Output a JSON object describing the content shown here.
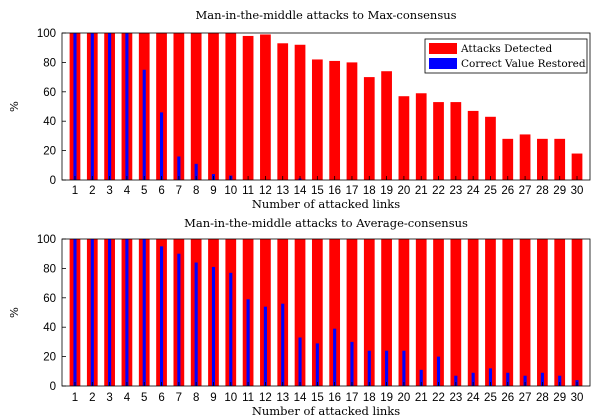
{
  "chart_data": [
    {
      "type": "bar",
      "title": "Man-in-the-middle attacks to Max-consensus",
      "xlabel": "Number of attacked links",
      "ylabel": "%",
      "ylim": [
        0,
        100
      ],
      "yticks": [
        0,
        20,
        40,
        60,
        80,
        100
      ],
      "categories": [
        "1",
        "2",
        "3",
        "4",
        "5",
        "6",
        "7",
        "8",
        "9",
        "10",
        "11",
        "12",
        "13",
        "14",
        "15",
        "16",
        "17",
        "18",
        "19",
        "20",
        "21",
        "22",
        "23",
        "24",
        "25",
        "26",
        "27",
        "28",
        "29",
        "30"
      ],
      "legend": "top-right",
      "series": [
        {
          "name": "Attacks Detected",
          "color": "#ff0000",
          "values": [
            100,
            100,
            100,
            100,
            100,
            100,
            100,
            100,
            100,
            100,
            98,
            99,
            93,
            92,
            82,
            81,
            80,
            70,
            74,
            57,
            59,
            53,
            53,
            47,
            43,
            28,
            31,
            28,
            28,
            18
          ]
        },
        {
          "name": "Correct Value Restored",
          "color": "#0000ff",
          "values": [
            100,
            100,
            100,
            100,
            75,
            46,
            16,
            11,
            4,
            3,
            0,
            0,
            0,
            1,
            0,
            0,
            0,
            0,
            0,
            0,
            0,
            0,
            0,
            0,
            0,
            0,
            0,
            0,
            0,
            0
          ]
        }
      ]
    },
    {
      "type": "bar",
      "title": "Man-in-the-middle attacks to Average-consensus",
      "xlabel": "Number of attacked links",
      "ylabel": "%",
      "ylim": [
        0,
        100
      ],
      "yticks": [
        0,
        20,
        40,
        60,
        80,
        100
      ],
      "categories": [
        "1",
        "2",
        "3",
        "4",
        "5",
        "6",
        "7",
        "8",
        "9",
        "10",
        "11",
        "12",
        "13",
        "14",
        "15",
        "16",
        "17",
        "18",
        "19",
        "20",
        "21",
        "22",
        "23",
        "24",
        "25",
        "26",
        "27",
        "28",
        "29",
        "30"
      ],
      "series": [
        {
          "color": "#ff0000",
          "values": [
            100,
            100,
            100,
            100,
            100,
            100,
            100,
            100,
            100,
            100,
            100,
            100,
            100,
            100,
            100,
            100,
            100,
            100,
            100,
            100,
            100,
            100,
            100,
            100,
            100,
            100,
            100,
            100,
            100,
            100
          ]
        },
        {
          "color": "#0000ff",
          "values": [
            100,
            100,
            100,
            100,
            100,
            95,
            90,
            84,
            81,
            77,
            59,
            54,
            56,
            33,
            29,
            39,
            30,
            24,
            24,
            24,
            11,
            20,
            7,
            9,
            12,
            9,
            7,
            9,
            7,
            4
          ]
        }
      ]
    }
  ]
}
